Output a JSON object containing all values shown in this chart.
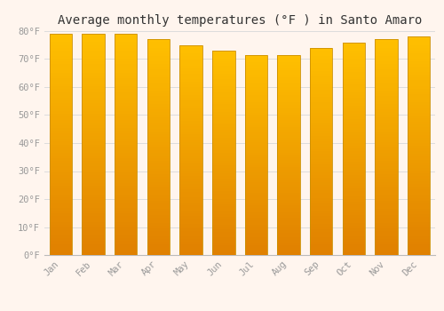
{
  "title": "Average monthly temperatures (°F ) in Santo Amaro",
  "months": [
    "Jan",
    "Feb",
    "Mar",
    "Apr",
    "May",
    "Jun",
    "Jul",
    "Aug",
    "Sep",
    "Oct",
    "Nov",
    "Dec"
  ],
  "values": [
    79,
    79,
    79,
    77,
    75,
    73,
    71.5,
    71.5,
    74,
    76,
    77,
    78
  ],
  "ylim": [
    0,
    80
  ],
  "yticks": [
    0,
    10,
    20,
    30,
    40,
    50,
    60,
    70,
    80
  ],
  "ytick_labels": [
    "0°F",
    "10°F",
    "20°F",
    "30°F",
    "40°F",
    "50°F",
    "60°F",
    "70°F",
    "80°F"
  ],
  "bar_color_top": "#FFC000",
  "bar_color_bottom": "#E08000",
  "background_color": "#FFF5EE",
  "grid_color": "#DCDCDC",
  "title_fontsize": 10,
  "tick_fontsize": 7.5,
  "bar_edge_color": "#CC9000",
  "bar_width": 0.7
}
